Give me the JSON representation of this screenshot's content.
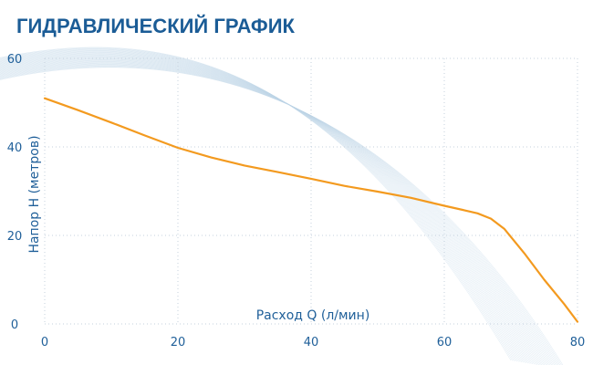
{
  "chart_data": {
    "type": "line",
    "title": "ГИДРАВЛИЧЕСКИЙ ГРАФИК",
    "xlabel": "Расход Q (л/мин)",
    "ylabel": "Напор H (метров)",
    "xlim": [
      0,
      80
    ],
    "ylim": [
      0,
      60
    ],
    "xticks": [
      "0",
      "20",
      "40",
      "60",
      "80"
    ],
    "yticks": [
      "0",
      "20",
      "40",
      "60"
    ],
    "grid": "dotted",
    "series": [
      {
        "color": "#f39a1f",
        "x": [
          0,
          5,
          10,
          15,
          20,
          25,
          30,
          35,
          40,
          45,
          50,
          55,
          60,
          63,
          65,
          67,
          69,
          72,
          75,
          78,
          80
        ],
        "y": [
          51,
          48.3,
          45.5,
          42.6,
          39.8,
          37.6,
          35.8,
          34.3,
          32.8,
          31.2,
          29.9,
          28.5,
          26.7,
          25.7,
          25.0,
          23.8,
          21.5,
          16.0,
          10.0,
          4.5,
          0.5
        ]
      }
    ]
  }
}
